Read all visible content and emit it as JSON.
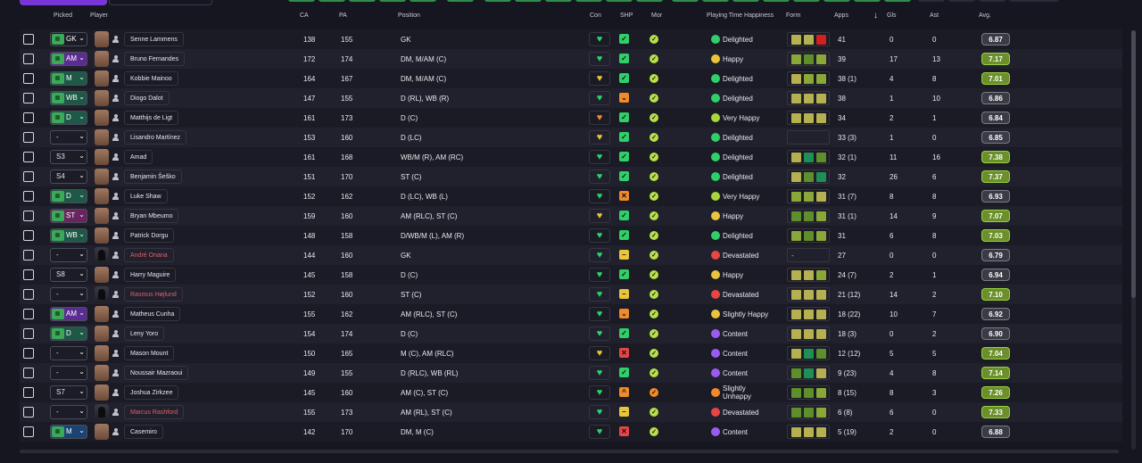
{
  "headers": {
    "picked": "Picked",
    "player": "Player",
    "ca": "CA",
    "pa": "PA",
    "position": "Position",
    "con": "Con",
    "shp": "SHP",
    "mor": "Mor",
    "happiness": "Playing Time Happiness",
    "form": "Form",
    "apps": "Apps",
    "gls": "Gls",
    "ast": "Ast",
    "avg": "Avg."
  },
  "colors": {
    "accent": "#7a35d6",
    "green": "#2fd06a",
    "yellow": "#e8c53a",
    "orange": "#f08a2a",
    "red": "#e84545",
    "purple": "#9a5cf0"
  },
  "players": [
    {
      "pos_code": "GK",
      "pos_style": "gk",
      "name": "Senne Lammens",
      "ca": "138",
      "pa": "155",
      "position": "GK",
      "con": "green",
      "shp": "check",
      "mor": "green",
      "hap": "Delighted",
      "hap_color": "green",
      "form": [
        "#b5b050",
        "#b5b050",
        "#d21f1f"
      ],
      "apps": "41",
      "gls": "0",
      "ast": "0",
      "avg": "6.87",
      "avg_style": "n",
      "face": "photo"
    },
    {
      "pos_code": "AM",
      "pos_style": "am",
      "name": "Bruno Fernandes",
      "ca": "172",
      "pa": "174",
      "position": "DM, M/AM (C)",
      "con": "green",
      "shp": "check",
      "mor": "green",
      "hap": "Happy",
      "hap_color": "yellow",
      "form": [
        "#8aa838",
        "#5e8f2a",
        "#8aa838"
      ],
      "apps": "39",
      "gls": "17",
      "ast": "13",
      "avg": "7.17",
      "avg_style": "g",
      "face": "photo"
    },
    {
      "pos_code": "M",
      "pos_style": "mid",
      "name": "Kobbie Mainoo",
      "ca": "164",
      "pa": "167",
      "position": "DM, M/AM (C)",
      "con": "yellowheart",
      "shp": "check",
      "mor": "green",
      "hap": "Delighted",
      "hap_color": "green",
      "form": [
        "#b5b050",
        "#8aa838",
        "#8aa838"
      ],
      "apps": "38 (1)",
      "gls": "4",
      "ast": "8",
      "avg": "7.01",
      "avg_style": "g",
      "face": "photo"
    },
    {
      "pos_code": "WB",
      "pos_style": "def",
      "name": "Diogo Dalot",
      "ca": "147",
      "pa": "155",
      "position": "D (RL), WB (R)",
      "con": "green",
      "shp": "orange",
      "mor": "green",
      "hap": "Delighted",
      "hap_color": "green",
      "form": [
        "#b5b050",
        "#b5b050",
        "#b5b050"
      ],
      "apps": "38",
      "gls": "1",
      "ast": "10",
      "avg": "6.86",
      "avg_style": "n",
      "face": "photo"
    },
    {
      "pos_code": "D",
      "pos_style": "def",
      "name": "Matthijs de Ligt",
      "ca": "161",
      "pa": "173",
      "position": "D (C)",
      "con": "orangeheart",
      "shp": "check",
      "mor": "green",
      "hap": "Very Happy",
      "hap_color": "lime",
      "form": [
        "#b5b050",
        "#b5b050",
        "#b5b050"
      ],
      "apps": "34",
      "gls": "2",
      "ast": "1",
      "avg": "6.84",
      "avg_style": "n",
      "face": "photo"
    },
    {
      "pos_code": "-",
      "pos_style": "plain",
      "name": "Lisandro Martínez",
      "ca": "153",
      "pa": "160",
      "position": "D (LC)",
      "con": "yellowheart",
      "shp": "check",
      "mor": "green",
      "hap": "Delighted",
      "hap_color": "green",
      "form": [],
      "apps": "33 (3)",
      "gls": "1",
      "ast": "0",
      "avg": "6.85",
      "avg_style": "n",
      "face": "photo"
    },
    {
      "pos_code": "S3",
      "pos_style": "plain",
      "name": "Amad",
      "ca": "161",
      "pa": "168",
      "position": "WB/M (R), AM (RC)",
      "con": "green",
      "shp": "check",
      "mor": "green",
      "hap": "Delighted",
      "hap_color": "green",
      "form": [
        "#b5b050",
        "#1f8f55",
        "#5e8f2a"
      ],
      "apps": "32 (1)",
      "gls": "11",
      "ast": "16",
      "avg": "7.38",
      "avg_style": "g",
      "face": "photo"
    },
    {
      "pos_code": "S4",
      "pos_style": "plain",
      "name": "Benjamin Šeško",
      "ca": "151",
      "pa": "170",
      "position": "ST (C)",
      "con": "green",
      "shp": "check",
      "mor": "green",
      "hap": "Delighted",
      "hap_color": "green",
      "form": [
        "#b5b050",
        "#5e8f2a",
        "#1f8f55"
      ],
      "apps": "32",
      "gls": "26",
      "ast": "6",
      "avg": "7.37",
      "avg_style": "g",
      "face": "photo"
    },
    {
      "pos_code": "D",
      "pos_style": "def",
      "name": "Luke Shaw",
      "ca": "152",
      "pa": "162",
      "position": "D (LC), WB (L)",
      "con": "green",
      "shp": "orangex",
      "mor": "green",
      "hap": "Very Happy",
      "hap_color": "lime",
      "form": [
        "#8aa838",
        "#8aa838",
        "#b5b050"
      ],
      "apps": "31 (7)",
      "gls": "8",
      "ast": "8",
      "avg": "6.93",
      "avg_style": "n",
      "face": "photo"
    },
    {
      "pos_code": "ST",
      "pos_style": "st",
      "name": "Bryan Mbeumo",
      "ca": "159",
      "pa": "160",
      "position": "AM (RLC), ST (C)",
      "con": "yellowheart",
      "shp": "check",
      "mor": "green",
      "hap": "Happy",
      "hap_color": "yellow",
      "form": [
        "#5e8f2a",
        "#5e8f2a",
        "#8aa838"
      ],
      "apps": "31 (1)",
      "gls": "14",
      "ast": "9",
      "avg": "7.07",
      "avg_style": "g",
      "face": "photo"
    },
    {
      "pos_code": "WB",
      "pos_style": "def",
      "name": "Patrick Dorgu",
      "ca": "148",
      "pa": "158",
      "position": "D/WB/M (L), AM (R)",
      "con": "green",
      "shp": "check",
      "mor": "green",
      "hap": "Delighted",
      "hap_color": "green",
      "form": [
        "#8aa838",
        "#5e8f2a",
        "#8aa838"
      ],
      "apps": "31",
      "gls": "6",
      "ast": "8",
      "avg": "7.03",
      "avg_style": "g",
      "face": "photo"
    },
    {
      "pos_code": "-",
      "pos_style": "plain",
      "name": "André Onana",
      "ca": "144",
      "pa": "160",
      "position": "GK",
      "con": "green",
      "shp": "minus",
      "mor": "green",
      "hap": "Devastated",
      "hap_color": "red",
      "form": [
        "-"
      ],
      "apps": "27",
      "gls": "0",
      "ast": "0",
      "avg": "6.79",
      "avg_style": "n",
      "face": "sil",
      "red": true
    },
    {
      "pos_code": "S8",
      "pos_style": "plain",
      "name": "Harry Maguire",
      "ca": "145",
      "pa": "158",
      "position": "D (C)",
      "con": "green",
      "shp": "check",
      "mor": "green",
      "hap": "Happy",
      "hap_color": "yellow",
      "form": [
        "#b5b050",
        "#b5b050",
        "#8aa838"
      ],
      "apps": "24 (7)",
      "gls": "2",
      "ast": "1",
      "avg": "6.94",
      "avg_style": "n",
      "face": "photo"
    },
    {
      "pos_code": "-",
      "pos_style": "plain",
      "name": "Rasmus Højlund",
      "ca": "152",
      "pa": "160",
      "position": "ST (C)",
      "con": "green",
      "shp": "minus",
      "mor": "green",
      "hap": "Devastated",
      "hap_color": "red",
      "form": [
        "#b5b050",
        "#b5b050",
        "#b5b050"
      ],
      "apps": "21 (12)",
      "gls": "14",
      "ast": "2",
      "avg": "7.10",
      "avg_style": "g",
      "face": "sil",
      "red": true
    },
    {
      "pos_code": "AM",
      "pos_style": "am",
      "name": "Matheus Cunha",
      "ca": "155",
      "pa": "162",
      "position": "AM (RLC), ST (C)",
      "con": "green",
      "shp": "orange",
      "mor": "green",
      "hap": "Slightly Happy",
      "hap_color": "yellow",
      "form": [
        "#b5b050",
        "#b5b050",
        "#b5b050"
      ],
      "apps": "18 (22)",
      "gls": "10",
      "ast": "7",
      "avg": "6.92",
      "avg_style": "n",
      "face": "photo"
    },
    {
      "pos_code": "D",
      "pos_style": "def",
      "name": "Leny Yoro",
      "ca": "154",
      "pa": "174",
      "position": "D (C)",
      "con": "green",
      "shp": "check",
      "mor": "green",
      "hap": "Content",
      "hap_color": "purple",
      "form": [
        "#b5b050",
        "#b5b050",
        "#b5b050"
      ],
      "apps": "18 (3)",
      "gls": "0",
      "ast": "2",
      "avg": "6.90",
      "avg_style": "n",
      "face": "photo"
    },
    {
      "pos_code": "-",
      "pos_style": "plain",
      "name": "Mason Mount",
      "ca": "150",
      "pa": "165",
      "position": "M (C), AM (RLC)",
      "con": "yellowheart",
      "shp": "redx",
      "mor": "green",
      "hap": "Content",
      "hap_color": "purple",
      "form": [
        "#b5b050",
        "#1f8f55",
        "#5e8f2a"
      ],
      "apps": "12 (12)",
      "gls": "5",
      "ast": "5",
      "avg": "7.04",
      "avg_style": "g",
      "face": "photo"
    },
    {
      "pos_code": "-",
      "pos_style": "plain",
      "name": "Noussair Mazraoui",
      "ca": "149",
      "pa": "155",
      "position": "D (RLC), WB (RL)",
      "con": "green",
      "shp": "check",
      "mor": "green",
      "hap": "Content",
      "hap_color": "purple",
      "form": [
        "#5e8f2a",
        "#1f8f55",
        "#b5b050"
      ],
      "apps": "9 (23)",
      "gls": "4",
      "ast": "8",
      "avg": "7.14",
      "avg_style": "g",
      "face": "photo"
    },
    {
      "pos_code": "S7",
      "pos_style": "plain",
      "name": "Joshua Zirkzee",
      "ca": "145",
      "pa": "160",
      "position": "AM (C), ST (C)",
      "con": "green",
      "shp": "caret",
      "mor": "orange",
      "hap": "Slightly\nUnhappy",
      "hap_color": "orange",
      "form": [
        "#5e8f2a",
        "#5e8f2a",
        "#8aa838"
      ],
      "apps": "8 (15)",
      "gls": "8",
      "ast": "3",
      "avg": "7.26",
      "avg_style": "g",
      "face": "photo"
    },
    {
      "pos_code": "-",
      "pos_style": "plain",
      "name": "Marcus Rashford",
      "ca": "155",
      "pa": "173",
      "position": "AM (RL), ST (C)",
      "con": "green",
      "shp": "minus",
      "mor": "green",
      "hap": "Devastated",
      "hap_color": "red",
      "form": [
        "#5e8f2a",
        "#5e8f2a",
        "#8aa838"
      ],
      "apps": "6 (8)",
      "gls": "6",
      "ast": "0",
      "avg": "7.33",
      "avg_style": "g",
      "face": "sil",
      "red": true
    },
    {
      "pos_code": "M",
      "pos_style": "dm",
      "name": "Casemiro",
      "ca": "142",
      "pa": "170",
      "position": "DM, M (C)",
      "con": "green",
      "shp": "redx",
      "mor": "green",
      "hap": "Content",
      "hap_color": "purple",
      "form": [
        "#b5b050",
        "#b5b050",
        "#b5b050"
      ],
      "apps": "5 (19)",
      "gls": "2",
      "ast": "0",
      "avg": "6.88",
      "avg_style": "n",
      "face": "photo"
    }
  ]
}
